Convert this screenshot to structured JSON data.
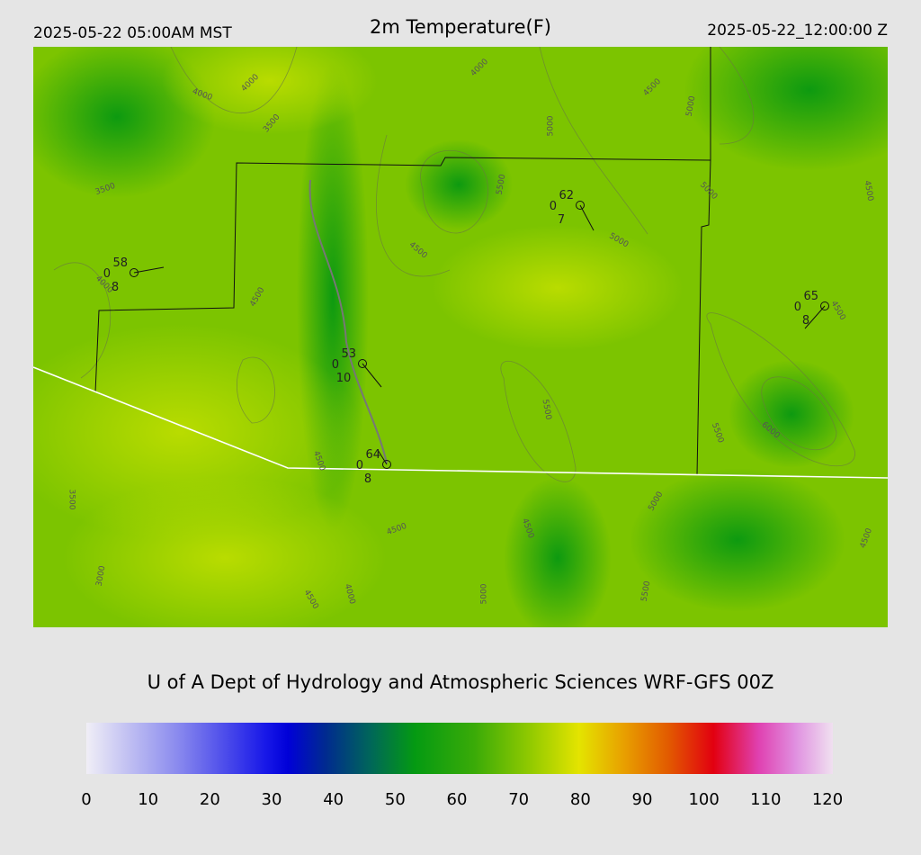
{
  "header": {
    "left": "2025-05-22 05:00AM MST",
    "title": "2m Temperature(F)",
    "right": "2025-05-22_12:00:00 Z"
  },
  "map": {
    "stations": [
      {
        "temp": 58,
        "left": 0,
        "bottom": 8
      },
      {
        "temp": 62,
        "left": 0,
        "bottom": 7
      },
      {
        "temp": 53,
        "left": 0,
        "bottom": 10
      },
      {
        "temp": 64,
        "left": 0,
        "bottom": 8
      },
      {
        "temp": 65,
        "left": 0,
        "bottom": 8
      }
    ],
    "contour_labels": [
      4000,
      4000,
      3500,
      3500,
      4000,
      4500,
      4000,
      4500,
      5000,
      5000,
      5500,
      5000,
      5000,
      4500,
      4500,
      5500,
      5500,
      6000,
      4500,
      3500,
      5000,
      4500,
      4500,
      3000,
      4500,
      4000,
      5000,
      5500,
      4500,
      4500
    ]
  },
  "credit": "U of A Dept of Hydrology and Atmospheric Sciences WRF-GFS 00Z",
  "colorbar": {
    "range": [
      0,
      120
    ],
    "ticks": [
      0,
      10,
      20,
      30,
      40,
      50,
      60,
      70,
      80,
      90,
      100,
      110,
      120
    ]
  }
}
